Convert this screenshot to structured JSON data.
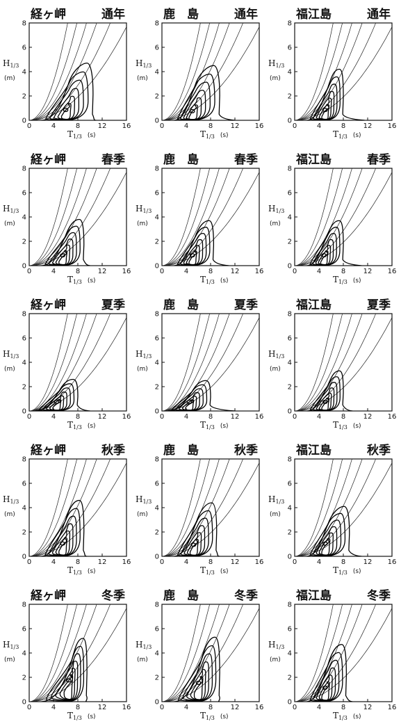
{
  "chart_data": {
    "type": "contour",
    "layout": {
      "rows": 5,
      "cols": 3
    },
    "stations": [
      "経ヶ岬",
      "鹿　島",
      "福江島"
    ],
    "seasons": [
      "通年",
      "春季",
      "夏季",
      "秋季",
      "冬季"
    ],
    "x_axis": {
      "symbol": "T",
      "subscript": "1/3",
      "unit": "(s)",
      "range": [
        0,
        16
      ],
      "ticks": [
        "0",
        "4",
        "8",
        "12",
        "16"
      ]
    },
    "y_axis": {
      "symbol": "H",
      "subscript": "1/3",
      "unit": "(m)",
      "range": [
        0,
        8
      ],
      "ticks": [
        "0",
        "2",
        "4",
        "6",
        "8"
      ]
    },
    "reference_curves": {
      "k": [
        0.2,
        0.13,
        0.09,
        0.065,
        0.045,
        0.03
      ],
      "form": "H = k * T^2"
    },
    "panels": [
      {
        "station": 0,
        "season": 0,
        "peak": [
          6.0,
          0.7
        ],
        "extent": [
          2,
          10.5,
          4.7
        ],
        "tail": 11.0
      },
      {
        "station": 1,
        "season": 0,
        "peak": [
          5.0,
          0.6
        ],
        "extent": [
          2,
          9.5,
          4.5
        ],
        "tail": 12.0
      },
      {
        "station": 2,
        "season": 0,
        "peak": [
          5.0,
          0.7
        ],
        "extent": [
          2,
          8.0,
          4.2
        ],
        "tail": 11.5
      },
      {
        "station": 0,
        "season": 1,
        "peak": [
          5.5,
          0.7
        ],
        "extent": [
          2,
          9.0,
          3.8
        ],
        "tail": 10.0
      },
      {
        "station": 1,
        "season": 1,
        "peak": [
          5.0,
          0.7
        ],
        "extent": [
          2,
          8.5,
          3.7
        ],
        "tail": 11.0
      },
      {
        "station": 2,
        "season": 1,
        "peak": [
          4.8,
          0.7
        ],
        "extent": [
          2,
          8.0,
          3.7
        ],
        "tail": 11.0
      },
      {
        "station": 0,
        "season": 2,
        "peak": [
          4.5,
          0.6
        ],
        "extent": [
          1,
          8.0,
          2.6
        ],
        "tail": 10.0
      },
      {
        "station": 1,
        "season": 2,
        "peak": [
          4.5,
          0.6
        ],
        "extent": [
          1,
          8.0,
          2.5
        ],
        "tail": 12.0
      },
      {
        "station": 2,
        "season": 2,
        "peak": [
          5.0,
          0.6
        ],
        "extent": [
          2,
          8.0,
          3.3
        ],
        "tail": 9.5
      },
      {
        "station": 0,
        "season": 3,
        "peak": [
          5.5,
          0.9
        ],
        "extent": [
          2,
          9.0,
          4.6
        ],
        "tail": 9.5
      },
      {
        "station": 1,
        "season": 3,
        "peak": [
          5.2,
          0.8
        ],
        "extent": [
          2,
          9.0,
          4.4
        ],
        "tail": 9.5
      },
      {
        "station": 2,
        "season": 3,
        "peak": [
          5.0,
          0.9
        ],
        "extent": [
          2,
          9.0,
          4.1
        ],
        "tail": 11.0
      },
      {
        "station": 0,
        "season": 4,
        "peak": [
          6.5,
          1.6
        ],
        "extent": [
          2,
          9.5,
          5.2
        ],
        "tail": 9.5
      },
      {
        "station": 1,
        "season": 4,
        "peak": [
          6.0,
          1.4
        ],
        "extent": [
          2,
          9.5,
          5.3
        ],
        "tail": 9.5
      },
      {
        "station": 2,
        "season": 4,
        "peak": [
          5.0,
          1.0
        ],
        "extent": [
          2,
          8.5,
          4.7
        ],
        "tail": 9.5
      }
    ]
  }
}
